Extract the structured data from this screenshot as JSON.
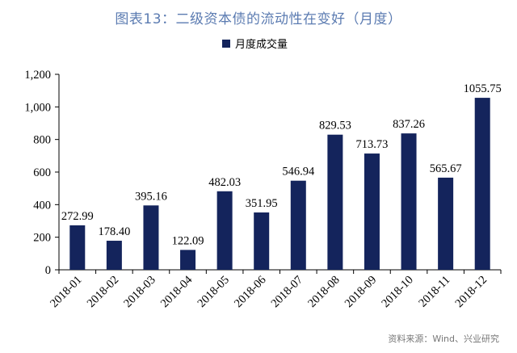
{
  "title": "图表13：二级资本债的流动性在变好（月度）",
  "source": "资料来源：Wind、兴业研究",
  "colors": {
    "bar": "#14245c",
    "title": "#5b7bb1"
  },
  "chart_data": {
    "type": "bar",
    "categories": [
      "2018-01",
      "2018-02",
      "2018-03",
      "2018-04",
      "2018-05",
      "2018-06",
      "2018-07",
      "2018-08",
      "2018-09",
      "2018-10",
      "2018-11",
      "2018-12"
    ],
    "series": [
      {
        "name": "月度成交量",
        "values": [
          272.99,
          178.4,
          395.16,
          122.09,
          482.03,
          351.95,
          546.94,
          829.53,
          713.73,
          837.26,
          565.67,
          1055.75
        ]
      }
    ],
    "value_labels": [
      "272.99",
      "178.40",
      "395.16",
      "122.09",
      "482.03",
      "351.95",
      "546.94",
      "829.53",
      "713.73",
      "837.26",
      "565.67",
      "1055.75"
    ],
    "ylim": [
      0,
      1200
    ],
    "yticks": [
      0,
      200,
      400,
      600,
      800,
      1000,
      1200
    ],
    "ytick_labels": [
      "0",
      "200",
      "400",
      "600",
      "800",
      "1,000",
      "1,200"
    ],
    "legend_position": "top-center",
    "grid": false
  }
}
